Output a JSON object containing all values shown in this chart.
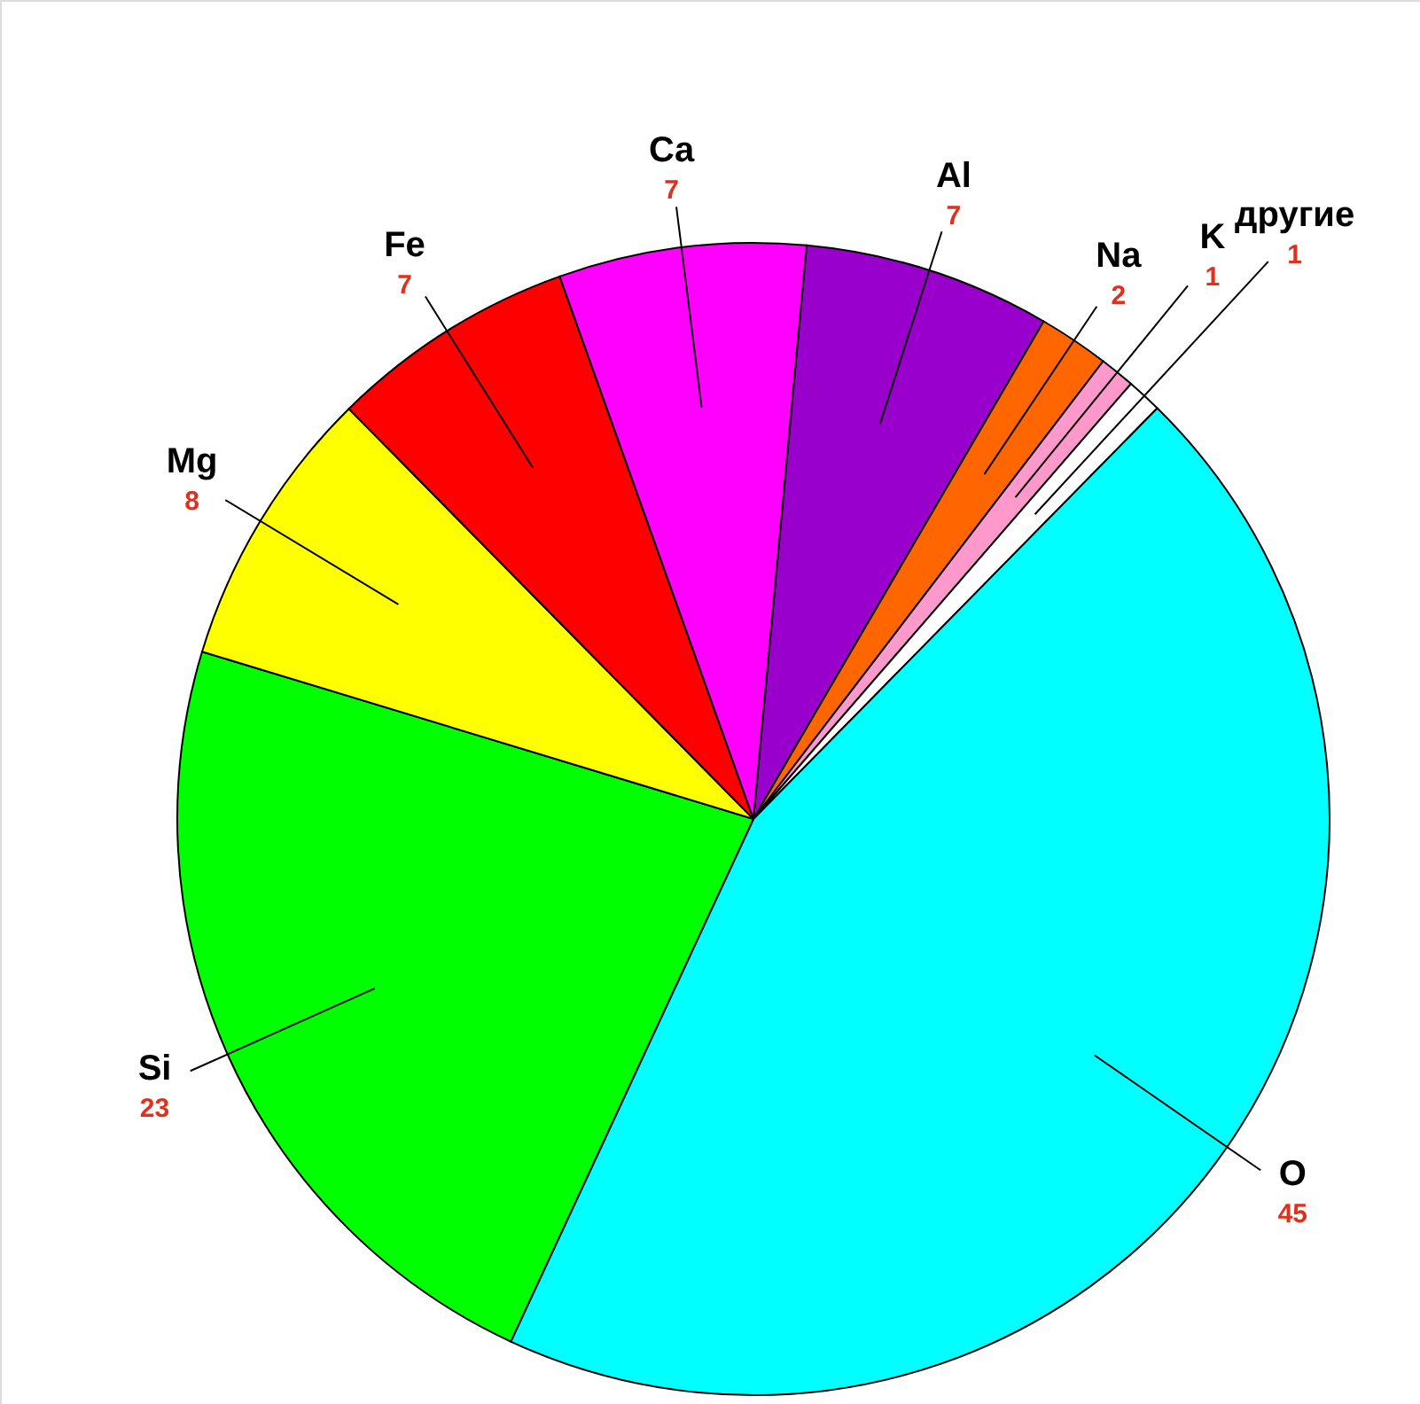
{
  "chart_data": {
    "type": "pie",
    "categories": [
      "Al",
      "Na",
      "K",
      "другие",
      "O",
      "Si",
      "Mg",
      "Fe",
      "Ca"
    ],
    "values": [
      7,
      2,
      1,
      1,
      45,
      23,
      8,
      7,
      7
    ],
    "colors": [
      "#9900cc",
      "#ff6600",
      "#ff99cc",
      "#ffffff",
      "#00ffff",
      "#00ff00",
      "#ffff00",
      "#ff0000",
      "#ff00ff"
    ],
    "data_labels": true
  }
}
